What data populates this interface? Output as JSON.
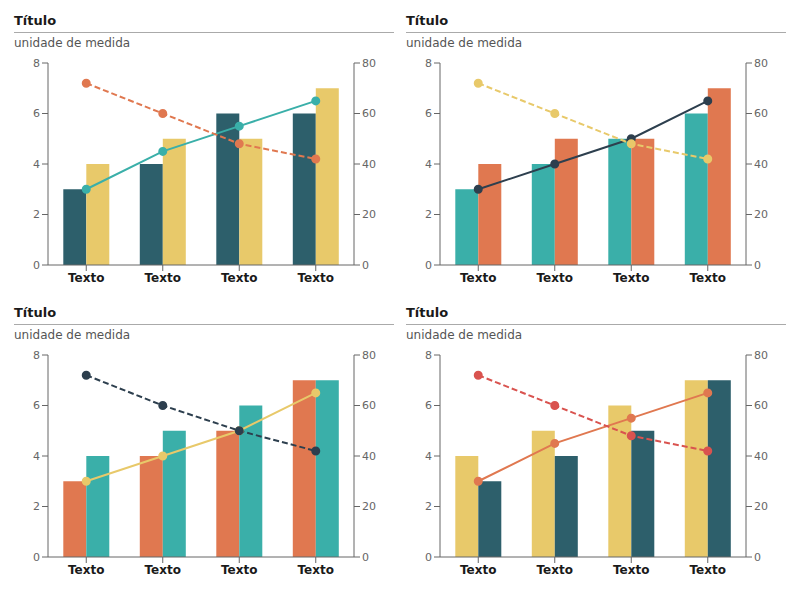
{
  "chart_data": [
    {
      "type": "bar",
      "title": "Título",
      "subtitle": "unidade de medida",
      "categories": [
        "Texto",
        "Texto",
        "Texto",
        "Texto"
      ],
      "ylim": [
        0,
        8
      ],
      "yticks": [
        0,
        2,
        4,
        6,
        8
      ],
      "y2lim": [
        0,
        80
      ],
      "y2ticks": [
        0,
        20,
        40,
        60,
        80
      ],
      "grid": false,
      "series": [
        {
          "type": "bar",
          "color": "#2d5f6b",
          "values": [
            3,
            4,
            6,
            6
          ]
        },
        {
          "type": "bar",
          "color": "#e8c96a",
          "values": [
            4,
            5,
            5,
            7
          ]
        },
        {
          "type": "line",
          "color": "#3aafa9",
          "line_style": "solid",
          "marker": "circle",
          "values": [
            3,
            4.5,
            5.5,
            6.5
          ]
        },
        {
          "type": "line",
          "color": "#e07850",
          "line_style": "dashed",
          "marker": "circle",
          "values": [
            7.2,
            6,
            4.8,
            4.2
          ]
        }
      ]
    },
    {
      "type": "bar",
      "title": "Título",
      "subtitle": "unidade de medida",
      "categories": [
        "Texto",
        "Texto",
        "Texto",
        "Texto"
      ],
      "ylim": [
        0,
        8
      ],
      "yticks": [
        0,
        2,
        4,
        6,
        8
      ],
      "y2lim": [
        0,
        80
      ],
      "y2ticks": [
        0,
        20,
        40,
        60,
        80
      ],
      "grid": false,
      "series": [
        {
          "type": "bar",
          "color": "#3aafa9",
          "values": [
            3,
            4,
            5,
            6
          ]
        },
        {
          "type": "bar",
          "color": "#e07850",
          "values": [
            4,
            5,
            5,
            7
          ]
        },
        {
          "type": "line",
          "color": "#2d3f4e",
          "line_style": "solid",
          "marker": "circle",
          "values": [
            3,
            4,
            5,
            6.5
          ]
        },
        {
          "type": "line",
          "color": "#e8c96a",
          "line_style": "dashed",
          "marker": "circle",
          "values": [
            7.2,
            6,
            4.8,
            4.2
          ]
        }
      ]
    },
    {
      "type": "bar",
      "title": "Título",
      "subtitle": "unidade de medida",
      "categories": [
        "Texto",
        "Texto",
        "Texto",
        "Texto"
      ],
      "ylim": [
        0,
        8
      ],
      "yticks": [
        0,
        2,
        4,
        6,
        8
      ],
      "y2lim": [
        0,
        80
      ],
      "y2ticks": [
        0,
        20,
        40,
        60,
        80
      ],
      "grid": false,
      "series": [
        {
          "type": "bar",
          "color": "#e07850",
          "values": [
            3,
            4,
            5,
            7
          ]
        },
        {
          "type": "bar",
          "color": "#3aafa9",
          "values": [
            4,
            5,
            6,
            7
          ]
        },
        {
          "type": "line",
          "color": "#e8c96a",
          "line_style": "solid",
          "marker": "circle",
          "values": [
            3,
            4,
            5,
            6.5
          ]
        },
        {
          "type": "line",
          "color": "#2d3f4e",
          "line_style": "dashed",
          "marker": "circle",
          "values": [
            7.2,
            6,
            5,
            4.2
          ]
        }
      ]
    },
    {
      "type": "bar",
      "title": "Título",
      "subtitle": "unidade de medida",
      "categories": [
        "Texto",
        "Texto",
        "Texto",
        "Texto"
      ],
      "ylim": [
        0,
        8
      ],
      "yticks": [
        0,
        2,
        4,
        6,
        8
      ],
      "y2lim": [
        0,
        80
      ],
      "y2ticks": [
        0,
        20,
        40,
        60,
        80
      ],
      "grid": false,
      "series": [
        {
          "type": "bar",
          "color": "#e8c96a",
          "values": [
            4,
            5,
            6,
            7
          ]
        },
        {
          "type": "bar",
          "color": "#2d5f6b",
          "values": [
            3,
            4,
            5,
            7
          ]
        },
        {
          "type": "line",
          "color": "#e07850",
          "line_style": "solid",
          "marker": "circle",
          "values": [
            3,
            4.5,
            5.5,
            6.5
          ]
        },
        {
          "type": "line",
          "color": "#d9534f",
          "line_style": "dashed",
          "marker": "circle",
          "values": [
            7.2,
            6,
            4.8,
            4.2
          ]
        }
      ]
    }
  ]
}
